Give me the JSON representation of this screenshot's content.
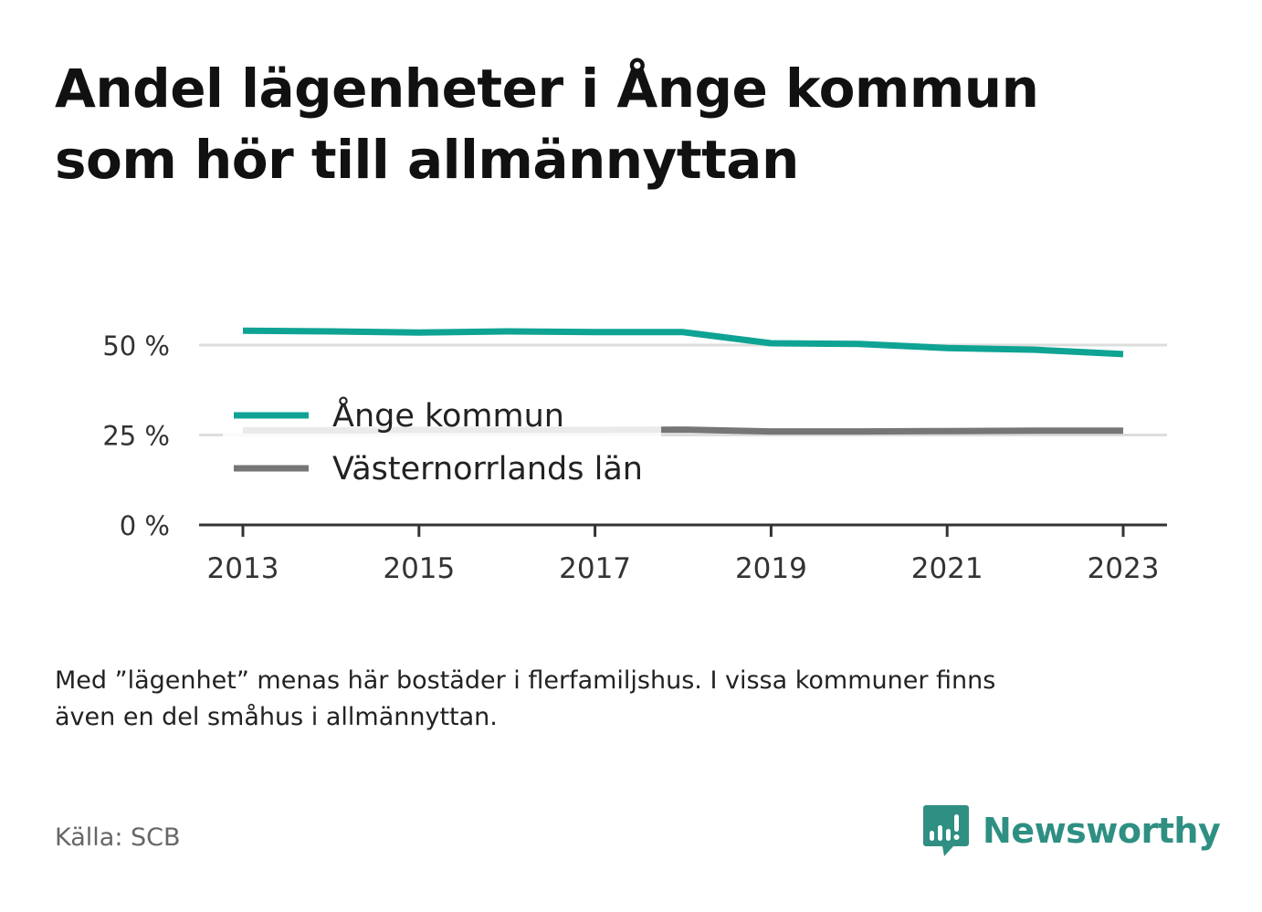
{
  "title_lines": [
    "Andel lägenheter i Ånge kommun",
    "som hör till allmännyttan"
  ],
  "note_lines": [
    "Med ”lägenhet” menas här bostäder i flerfamiljshus. I vissa kommuner finns",
    "även en del småhus i allmännyttan."
  ],
  "source": "Källa: SCB",
  "brand": {
    "name": "Newsworthy",
    "logo_icon": "bar-chart-speech-bubble-icon",
    "color": "#2e8f82"
  },
  "chart_data": {
    "type": "line",
    "x": [
      2013,
      2014,
      2015,
      2016,
      2017,
      2018,
      2019,
      2020,
      2021,
      2022,
      2023
    ],
    "x_ticks": [
      2013,
      2015,
      2017,
      2019,
      2021,
      2023
    ],
    "x_tick_labels": [
      "2013",
      "2015",
      "2017",
      "2019",
      "2021",
      "2023"
    ],
    "y_ticks": [
      0,
      25,
      50
    ],
    "y_tick_labels": [
      "0 %",
      "25 %",
      "50 %"
    ],
    "ylim": [
      0,
      60
    ],
    "grid": true,
    "legend_position": "left-middle",
    "series": [
      {
        "name": "Ånge kommun",
        "color": "#0fa394",
        "values": [
          54.0,
          53.8,
          53.5,
          53.8,
          53.6,
          53.6,
          50.5,
          50.3,
          49.2,
          48.7,
          47.5
        ]
      },
      {
        "name": "Västernorrlands län",
        "color": "#767676",
        "values": [
          26.3,
          26.3,
          26.4,
          26.4,
          26.4,
          26.5,
          26.0,
          26.0,
          26.1,
          26.2,
          26.2
        ]
      }
    ]
  }
}
